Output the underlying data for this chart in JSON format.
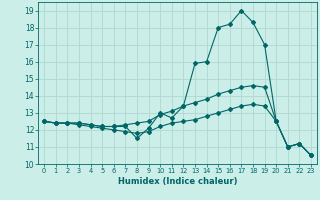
{
  "title": "",
  "xlabel": "Humidex (Indice chaleur)",
  "bg_color": "#cceee8",
  "line_color": "#006666",
  "grid_color": "#b0d8d0",
  "xlim": [
    -0.5,
    23.5
  ],
  "ylim": [
    10,
    19.5
  ],
  "yticks": [
    10,
    11,
    12,
    13,
    14,
    15,
    16,
    17,
    18,
    19
  ],
  "xticks": [
    0,
    1,
    2,
    3,
    4,
    5,
    6,
    7,
    8,
    9,
    10,
    11,
    12,
    13,
    14,
    15,
    16,
    17,
    18,
    19,
    20,
    21,
    22,
    23
  ],
  "series": [
    {
      "x": [
        0,
        1,
        2,
        3,
        4,
        5,
        6,
        7,
        8,
        9,
        10,
        11,
        12,
        13,
        14,
        15,
        16,
        17,
        18,
        19,
        20,
        21,
        22,
        23
      ],
      "y": [
        12.5,
        12.4,
        12.4,
        12.4,
        12.3,
        12.2,
        12.2,
        12.2,
        11.5,
        12.1,
        13.0,
        12.7,
        13.4,
        15.9,
        16.0,
        18.0,
        18.2,
        19.0,
        18.3,
        17.0,
        12.5,
        11.0,
        11.2,
        10.5
      ]
    },
    {
      "x": [
        0,
        1,
        2,
        3,
        4,
        5,
        6,
        7,
        8,
        9,
        10,
        11,
        12,
        13,
        14,
        15,
        16,
        17,
        18,
        19,
        20,
        21,
        22,
        23
      ],
      "y": [
        12.5,
        12.4,
        12.4,
        12.4,
        12.3,
        12.2,
        12.2,
        12.3,
        12.4,
        12.5,
        12.9,
        13.1,
        13.4,
        13.6,
        13.8,
        14.1,
        14.3,
        14.5,
        14.6,
        14.5,
        12.5,
        11.0,
        11.2,
        10.5
      ]
    },
    {
      "x": [
        0,
        1,
        2,
        3,
        4,
        5,
        6,
        7,
        8,
        9,
        10,
        11,
        12,
        13,
        14,
        15,
        16,
        17,
        18,
        19,
        20,
        21,
        22,
        23
      ],
      "y": [
        12.5,
        12.4,
        12.4,
        12.3,
        12.2,
        12.1,
        12.0,
        11.9,
        11.8,
        11.9,
        12.2,
        12.4,
        12.5,
        12.6,
        12.8,
        13.0,
        13.2,
        13.4,
        13.5,
        13.4,
        12.5,
        11.0,
        11.2,
        10.5
      ]
    }
  ]
}
